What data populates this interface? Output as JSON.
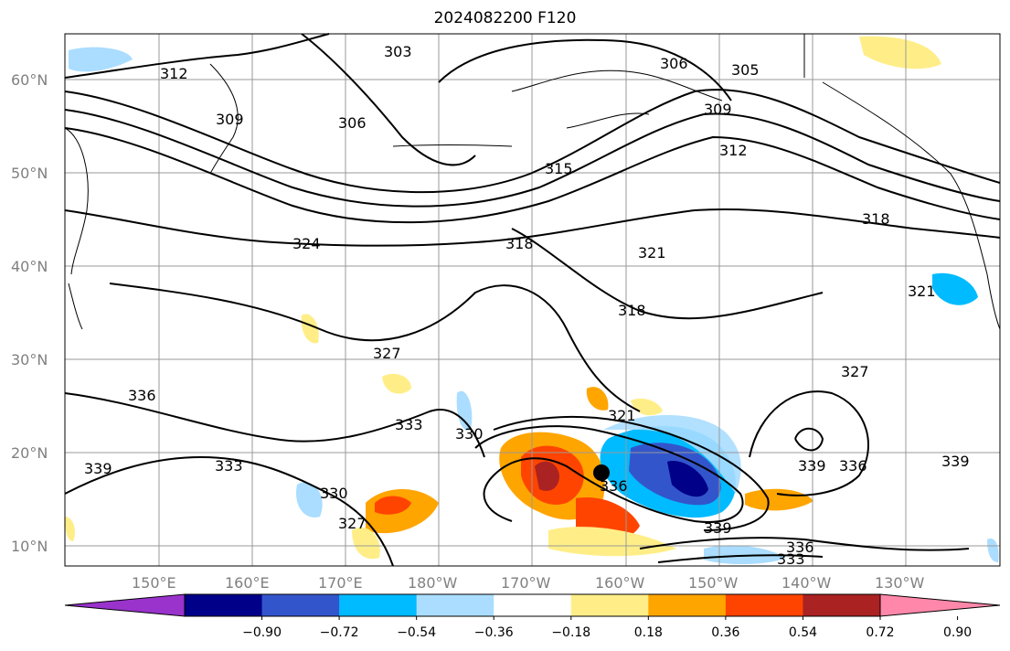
{
  "title": "2024082200 F120",
  "lat_labels": [
    "60°N",
    "50°N",
    "40°N",
    "30°N",
    "20°N",
    "10°N"
  ],
  "lon_labels": [
    "150°E",
    "160°E",
    "170°E",
    "180°W",
    "170°W",
    "160°W",
    "150°W",
    "140°W",
    "130°W"
  ],
  "colorbar": {
    "ticks": [
      "−0.90",
      "−0.72",
      "−0.54",
      "−0.36",
      "−0.18",
      "0.18",
      "0.36",
      "0.54",
      "0.72",
      "0.90"
    ],
    "colors": [
      "#9933cc",
      "#000088",
      "#3355cc",
      "#00bbff",
      "#aaddff",
      "#ffffff",
      "#ffee88",
      "#ffa500",
      "#ff4400",
      "#aa2222",
      "#ff88aa"
    ]
  },
  "contour_labels": [
    "303",
    "306",
    "306",
    "309",
    "309",
    "312",
    "312",
    "315",
    "318",
    "318",
    "318",
    "321",
    "321",
    "321",
    "324",
    "327",
    "327",
    "327",
    "330",
    "330",
    "333",
    "333",
    "333",
    "336",
    "336",
    "336",
    "336",
    "339",
    "339",
    "339",
    "339",
    "305"
  ],
  "marker": "storm-center-dot"
}
